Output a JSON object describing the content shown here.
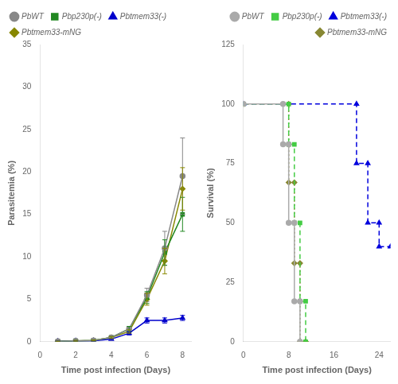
{
  "chart_data": [
    {
      "type": "line",
      "xlabel": "Time post infection (Days)",
      "ylabel": "Parasitemia (%)",
      "x": [
        1,
        2,
        3,
        4,
        5,
        6,
        7,
        8
      ],
      "xlim": [
        0,
        8.5
      ],
      "xticks": [
        0,
        2,
        4,
        6,
        8
      ],
      "ylim": [
        0,
        35
      ],
      "yticks": [
        0,
        5,
        10,
        15,
        20,
        25,
        30,
        35
      ],
      "grid": false,
      "legend": "upper left",
      "series": [
        {
          "name": "PbWT",
          "color": "#888888",
          "marker": "circle",
          "line_style": "solid",
          "values": [
            0.05,
            0.1,
            0.15,
            0.5,
            1.5,
            5.5,
            11.0,
            19.5
          ],
          "errors": [
            0.02,
            0.05,
            0.05,
            0.1,
            0.3,
            0.8,
            2.0,
            4.5
          ]
        },
        {
          "name": "Pbp230p(-)",
          "color": "#228822",
          "marker": "square",
          "line_style": "solid",
          "values": [
            0.05,
            0.1,
            0.15,
            0.5,
            1.5,
            5.2,
            10.5,
            15.0
          ],
          "errors": [
            0.02,
            0.05,
            0.05,
            0.1,
            0.3,
            0.7,
            1.5,
            2.0
          ]
        },
        {
          "name": "Pbtmem33(-)",
          "color": "#0000cc",
          "marker": "triangle",
          "line_style": "solid",
          "values": [
            0.05,
            0.1,
            0.1,
            0.3,
            1.0,
            2.5,
            2.5,
            2.8
          ],
          "errors": [
            0.02,
            0.02,
            0.02,
            0.05,
            0.2,
            0.3,
            0.3,
            0.3
          ]
        },
        {
          "name": "Pbtmem33-mNG",
          "color": "#888800",
          "marker": "diamond",
          "line_style": "solid",
          "values": [
            0.05,
            0.1,
            0.15,
            0.5,
            1.2,
            5.0,
            9.5,
            18.0
          ],
          "errors": [
            0.02,
            0.05,
            0.05,
            0.1,
            0.2,
            0.7,
            1.5,
            2.5
          ]
        }
      ]
    },
    {
      "type": "line",
      "xlabel": "Time post infection (Days)",
      "ylabel": "Survival (%)",
      "xlim": [
        0,
        26
      ],
      "xticks": [
        0,
        8,
        16,
        24
      ],
      "ylim": [
        0,
        125
      ],
      "yticks": [
        0,
        25,
        50,
        75,
        100,
        125
      ],
      "grid": false,
      "legend": "upper right",
      "series": [
        {
          "name": "PbWT",
          "color": "#aaaaaa",
          "marker": "circle",
          "line_style": "solid",
          "x": [
            0,
            7,
            7,
            8,
            8,
            9,
            9,
            10,
            10
          ],
          "values": [
            100,
            100,
            83,
            83,
            50,
            50,
            17,
            17,
            0
          ]
        },
        {
          "name": "Pbp230p(-)",
          "color": "#44cc44",
          "marker": "square",
          "line_style": "dashed",
          "x": [
            0,
            8,
            8,
            9,
            9,
            10,
            10,
            11,
            11
          ],
          "values": [
            100,
            100,
            83,
            83,
            50,
            50,
            17,
            17,
            0
          ]
        },
        {
          "name": "Pbtmem33(-)",
          "color": "#0000dd",
          "marker": "triangle",
          "line_style": "dashed",
          "x": [
            0,
            20,
            20,
            22,
            22,
            24,
            24,
            26
          ],
          "values": [
            100,
            100,
            75,
            75,
            50,
            50,
            40,
            40
          ]
        },
        {
          "name": "Pbtmem33-mNG",
          "color": "#888833",
          "marker": "diamond",
          "line_style": "dotted",
          "x": [
            0,
            8,
            8,
            9,
            9,
            10,
            10,
            11,
            11
          ],
          "values": [
            100,
            100,
            67,
            67,
            33,
            33,
            0,
            0,
            0
          ]
        }
      ]
    }
  ]
}
